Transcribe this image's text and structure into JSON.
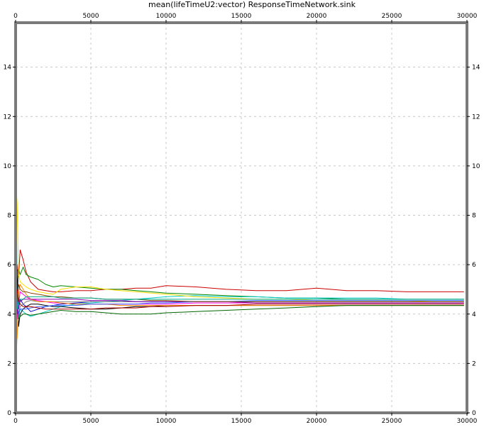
{
  "chart_data": {
    "type": "line",
    "title": "mean(lifeTimeU2:vector) ResponseTimeNetwork.sink",
    "xlabel": "",
    "ylabel": "",
    "xlim": [
      0,
      30000
    ],
    "ylim": [
      0,
      15.8
    ],
    "x_ticks": [
      0,
      5000,
      10000,
      15000,
      20000,
      25000,
      30000
    ],
    "y_ticks": [
      0,
      2,
      4,
      6,
      8,
      10,
      12,
      14
    ],
    "grid": true,
    "legend": "none",
    "x": [
      0,
      100,
      200,
      300,
      500,
      700,
      1000,
      1500,
      2000,
      2500,
      3000,
      4000,
      5000,
      6000,
      7000,
      8000,
      9000,
      10000,
      12000,
      14000,
      16000,
      18000,
      20000,
      22000,
      24000,
      26000,
      28000,
      29800
    ],
    "series": [
      {
        "color": "#cc0000",
        "values": [
          5.0,
          6.0,
          5.5,
          6.6,
          6.2,
          5.7,
          5.3,
          5.0,
          4.95,
          4.9,
          4.9,
          4.95,
          4.95,
          5.0,
          5.0,
          5.05,
          5.05,
          5.15,
          5.1,
          5.0,
          4.95,
          4.95,
          5.05,
          4.95,
          4.95,
          4.9,
          4.9,
          4.9
        ]
      },
      {
        "color": "#008800",
        "values": [
          5.2,
          4.5,
          5.8,
          5.6,
          5.9,
          5.6,
          5.5,
          5.4,
          5.2,
          5.1,
          5.15,
          5.1,
          5.05,
          5.0,
          5.0,
          4.95,
          4.9,
          4.85,
          4.8,
          4.75,
          4.7,
          4.65,
          4.65,
          4.6,
          4.6,
          4.6,
          4.6,
          4.6
        ]
      },
      {
        "color": "#0000cc",
        "values": [
          4.8,
          5.4,
          4.2,
          4.6,
          4.4,
          4.3,
          4.1,
          4.2,
          4.3,
          4.35,
          4.4,
          4.45,
          4.5,
          4.5,
          4.5,
          4.5,
          4.5,
          4.5,
          4.5,
          4.5,
          4.5,
          4.5,
          4.5,
          4.5,
          4.5,
          4.5,
          4.5,
          4.5
        ]
      },
      {
        "color": "#ff00ff",
        "values": [
          4.5,
          3.8,
          4.4,
          4.9,
          4.8,
          4.7,
          4.6,
          4.55,
          4.5,
          4.45,
          4.45,
          4.4,
          4.4,
          4.4,
          4.4,
          4.4,
          4.4,
          4.4,
          4.45,
          4.45,
          4.45,
          4.45,
          4.45,
          4.45,
          4.45,
          4.45,
          4.45,
          4.45
        ]
      },
      {
        "color": "#00cccc",
        "values": [
          12.0,
          5.0,
          3.8,
          4.2,
          4.1,
          4.0,
          3.9,
          4.0,
          4.1,
          4.2,
          4.3,
          4.4,
          4.45,
          4.5,
          4.55,
          4.6,
          4.65,
          4.7,
          4.75,
          4.7,
          4.7,
          4.65,
          4.65,
          4.65,
          4.65,
          4.6,
          4.6,
          4.6
        ]
      },
      {
        "color": "#ffdd00",
        "values": [
          9.5,
          8.5,
          5.6,
          5.3,
          5.2,
          5.1,
          5.0,
          4.9,
          4.85,
          4.8,
          5.0,
          5.1,
          5.1,
          5.0,
          4.95,
          4.9,
          4.85,
          4.8,
          4.7,
          4.65,
          4.6,
          4.6,
          4.55,
          4.55,
          4.55,
          4.55,
          4.5,
          4.5
        ]
      },
      {
        "color": "#000000",
        "values": [
          3.0,
          5.8,
          3.5,
          4.0,
          4.2,
          4.3,
          4.4,
          4.4,
          4.35,
          4.3,
          4.3,
          4.25,
          4.2,
          4.2,
          4.25,
          4.3,
          4.3,
          4.35,
          4.35,
          4.35,
          4.35,
          4.35,
          4.35,
          4.35,
          4.35,
          4.35,
          4.35,
          4.35
        ]
      },
      {
        "color": "#808080",
        "values": [
          1.5,
          3.2,
          4.0,
          4.3,
          4.4,
          4.5,
          4.55,
          4.5,
          4.5,
          4.5,
          4.5,
          4.5,
          4.5,
          4.5,
          4.5,
          4.5,
          4.5,
          4.5,
          4.5,
          4.5,
          4.5,
          4.5,
          4.5,
          4.5,
          4.5,
          4.5,
          4.5,
          4.5
        ]
      },
      {
        "color": "#ff8800",
        "values": [
          4.2,
          3.0,
          4.8,
          5.2,
          5.0,
          4.8,
          4.6,
          4.5,
          4.5,
          4.5,
          4.45,
          4.4,
          4.4,
          4.4,
          4.35,
          4.35,
          4.35,
          4.35,
          4.35,
          4.35,
          4.35,
          4.35,
          4.35,
          4.35,
          4.35,
          4.35,
          4.35,
          4.35
        ]
      },
      {
        "color": "#006600",
        "values": [
          3.5,
          4.3,
          3.8,
          3.9,
          4.0,
          4.0,
          3.95,
          4.0,
          4.05,
          4.1,
          4.15,
          4.1,
          4.1,
          4.05,
          4.0,
          4.0,
          4.0,
          4.05,
          4.1,
          4.15,
          4.2,
          4.25,
          4.3,
          4.35,
          4.35,
          4.35,
          4.35,
          4.35
        ]
      },
      {
        "color": "#8800aa",
        "values": [
          5.5,
          4.0,
          4.6,
          4.5,
          4.6,
          4.6,
          4.6,
          4.6,
          4.6,
          4.6,
          4.6,
          4.6,
          4.55,
          4.55,
          4.55,
          4.5,
          4.5,
          4.5,
          4.5,
          4.5,
          4.45,
          4.45,
          4.45,
          4.45,
          4.45,
          4.45,
          4.45,
          4.45
        ]
      },
      {
        "color": "#3366ff",
        "values": [
          4.0,
          4.8,
          4.0,
          4.2,
          4.2,
          4.2,
          4.25,
          4.3,
          4.3,
          4.35,
          4.35,
          4.35,
          4.4,
          4.4,
          4.4,
          4.4,
          4.45,
          4.45,
          4.5,
          4.5,
          4.55,
          4.55,
          4.55,
          4.55,
          4.55,
          4.55,
          4.55,
          4.55
        ]
      },
      {
        "color": "#884400",
        "values": [
          6.0,
          4.5,
          5.2,
          5.0,
          4.9,
          4.9,
          4.85,
          4.8,
          4.75,
          4.7,
          4.7,
          4.65,
          4.65,
          4.6,
          4.6,
          4.6,
          4.55,
          4.55,
          4.5,
          4.5,
          4.5,
          4.5,
          4.5,
          4.5,
          4.5,
          4.5,
          4.5,
          4.5
        ]
      },
      {
        "color": "#00aa88",
        "values": [
          7.0,
          4.2,
          4.4,
          4.6,
          4.6,
          4.7,
          4.7,
          4.7,
          4.7,
          4.7,
          4.65,
          4.65,
          4.65,
          4.6,
          4.6,
          4.6,
          4.6,
          4.6,
          4.6,
          4.6,
          4.6,
          4.6,
          4.6,
          4.6,
          4.6,
          4.6,
          4.6,
          4.6
        ]
      },
      {
        "color": "#aa0000",
        "values": [
          3.8,
          5.0,
          4.6,
          4.4,
          4.3,
          4.3,
          4.3,
          4.25,
          4.2,
          4.2,
          4.2,
          4.2,
          4.2,
          4.25,
          4.25,
          4.25,
          4.3,
          4.3,
          4.35,
          4.35,
          4.4,
          4.4,
          4.4,
          4.4,
          4.4,
          4.4,
          4.4,
          4.4
        ]
      }
    ]
  }
}
